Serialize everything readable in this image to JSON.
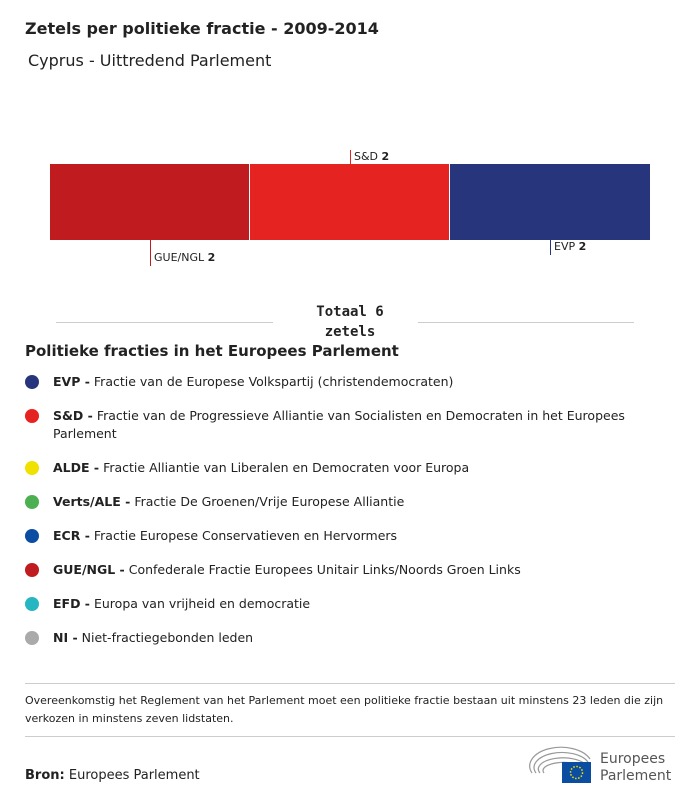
{
  "title": "Zetels per politieke fractie - 2009-2014",
  "subtitle": "Cyprus - Uittredend Parlement",
  "chart_data": {
    "type": "bar",
    "orientation": "stacked-horizontal",
    "title": "Zetels per politieke fractie - 2009-2014",
    "categories": [
      "GUE/NGL",
      "S&D",
      "EVP"
    ],
    "values": [
      2,
      2,
      2
    ],
    "colors": [
      "#c01b1e",
      "#e52421",
      "#27367c"
    ],
    "label_positions": [
      "below",
      "above",
      "below"
    ],
    "total_label": "Totaal 6 zetels"
  },
  "legend": {
    "title": "Politieke fracties in het Europees Parlement",
    "items": [
      {
        "abbr": "EVP -",
        "desc": "Fractie van de Europese Volkspartij (christendemocraten)",
        "color": "#27367c"
      },
      {
        "abbr": "S&D -",
        "desc": "Fractie van de Progressieve Alliantie van Socialisten en Democraten in het Europees Parlement",
        "color": "#e52421"
      },
      {
        "abbr": "ALDE -",
        "desc": "Fractie Alliantie van Liberalen en Democraten voor Europa",
        "color": "#f0e100"
      },
      {
        "abbr": "Verts/ALE -",
        "desc": "Fractie De Groenen/Vrije Europese Alliantie",
        "color": "#4caf50"
      },
      {
        "abbr": "ECR -",
        "desc": "Fractie Europese Conservatieven en Hervormers",
        "color": "#0a4da1"
      },
      {
        "abbr": "GUE/NGL -",
        "desc": "Confederale Fractie Europees Unitair Links/Noords Groen Links",
        "color": "#c01b1e"
      },
      {
        "abbr": "EFD -",
        "desc": "Europa van vrijheid en democratie",
        "color": "#26b6c2"
      },
      {
        "abbr": "NI -",
        "desc": "Niet-fractiegebonden leden",
        "color": "#aaaaaa"
      }
    ]
  },
  "note": "Overeenkomstig het Reglement van het Parlement moet een politieke fractie bestaan uit minstens 23 leden die zijn verkozen in minstens zeven lidstaten.",
  "source": {
    "label": "Bron:",
    "value": "Europees Parlement"
  },
  "logo": {
    "text": "Europees Parlement"
  }
}
